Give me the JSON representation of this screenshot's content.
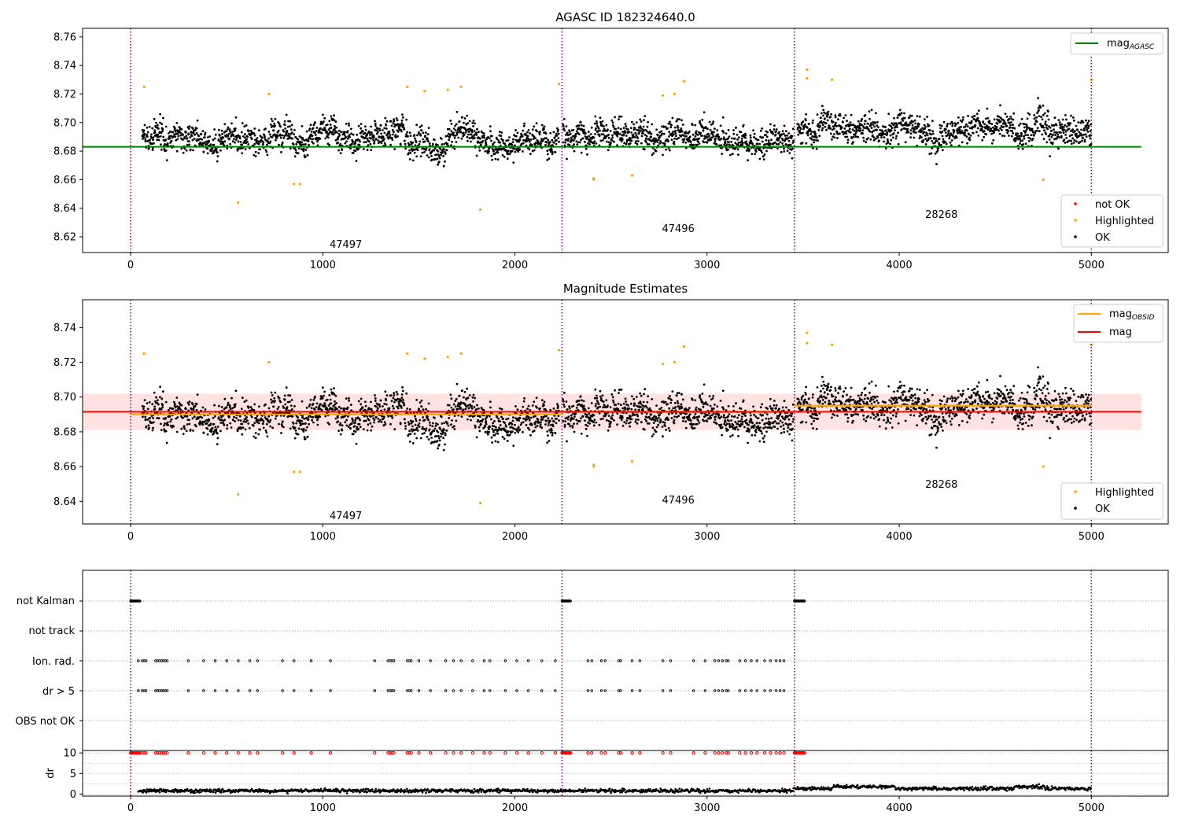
{
  "chart_data": [
    {
      "type": "scatter",
      "title": "AGASC ID 182324640.0",
      "xlim": [
        -250,
        5400
      ],
      "ylim": [
        8.609,
        8.766
      ],
      "xticks": [
        "0",
        "1000",
        "2000",
        "3000",
        "4000",
        "5000"
      ],
      "yticks": [
        "8.62",
        "8.64",
        "8.66",
        "8.68",
        "8.70",
        "8.72",
        "8.74",
        "8.76"
      ],
      "obs_boundaries": [
        0,
        2245,
        3455,
        5000
      ],
      "obs_labels": [
        {
          "text": "47497",
          "x": 1120,
          "y": 8.615
        },
        {
          "text": "47496",
          "x": 2850,
          "y": 8.626
        },
        {
          "text": "28268",
          "x": 4220,
          "y": 8.636
        }
      ],
      "reference_lines": [
        {
          "name": "mag_AGASC",
          "y": 8.683,
          "color": "#008000"
        }
      ],
      "legend_top": [
        {
          "label": "mag",
          "sub": "AGASC",
          "color": "#008000"
        }
      ],
      "legend_bottom": [
        {
          "label": "not OK",
          "color": "#ff0000"
        },
        {
          "label": "Highlighted",
          "color": "#ffa500"
        },
        {
          "label": "OK",
          "color": "#000000"
        }
      ],
      "segments": [
        {
          "start": 60,
          "end": 2230,
          "mean": 8.69,
          "sigma": 0.0095
        },
        {
          "start": 2250,
          "end": 3450,
          "mean": 8.69,
          "sigma": 0.0095
        },
        {
          "start": 3470,
          "end": 5000,
          "mean": 8.695,
          "sigma": 0.01
        }
      ],
      "highlighted_points": [
        [
          70,
          8.725
        ],
        [
          560,
          8.644
        ],
        [
          720,
          8.72
        ],
        [
          850,
          8.657
        ],
        [
          880,
          8.657
        ],
        [
          1440,
          8.725
        ],
        [
          1530,
          8.722
        ],
        [
          1650,
          8.723
        ],
        [
          1720,
          8.725
        ],
        [
          1820,
          8.639
        ],
        [
          2230,
          8.727
        ],
        [
          2410,
          8.661
        ],
        [
          2410,
          8.66
        ],
        [
          2610,
          8.663
        ],
        [
          2770,
          8.719
        ],
        [
          2830,
          8.72
        ],
        [
          2880,
          8.729
        ],
        [
          3520,
          8.737
        ],
        [
          3520,
          8.731
        ],
        [
          3650,
          8.73
        ],
        [
          4750,
          8.66
        ],
        [
          5000,
          8.73
        ]
      ]
    },
    {
      "type": "scatter",
      "title": "Magnitude Estimates",
      "xlim": [
        -250,
        5400
      ],
      "ylim": [
        8.627,
        8.756
      ],
      "xticks": [
        "0",
        "1000",
        "2000",
        "3000",
        "4000",
        "5000"
      ],
      "yticks": [
        "8.64",
        "8.66",
        "8.68",
        "8.70",
        "8.72",
        "8.74"
      ],
      "obs_boundaries": [
        0,
        2245,
        3455,
        5000
      ],
      "obs_labels": [
        {
          "text": "47497",
          "x": 1120,
          "y": 8.632
        },
        {
          "text": "47496",
          "x": 2850,
          "y": 8.641
        },
        {
          "text": "28268",
          "x": 4220,
          "y": 8.65
        }
      ],
      "reference_lines": [
        {
          "name": "mag",
          "y": 8.6915,
          "color": "#ff0000"
        }
      ],
      "mag_band": [
        8.681,
        8.702
      ],
      "mag_obsid_steps": [
        {
          "start": 0,
          "end": 2245,
          "y": 8.69
        },
        {
          "start": 2245,
          "end": 3455,
          "y": 8.6915
        },
        {
          "start": 3455,
          "end": 5000,
          "y": 8.695
        }
      ],
      "legend_top": [
        {
          "label": "mag",
          "sub": "OBSID",
          "color": "#ffa500"
        },
        {
          "label": "mag",
          "sub": "",
          "color": "#ff0000"
        }
      ],
      "legend_bottom": [
        {
          "label": "Highlighted",
          "color": "#ffa500"
        },
        {
          "label": "OK",
          "color": "#000000"
        }
      ]
    },
    {
      "type": "scatter",
      "categories": [
        "not Kalman",
        "not track",
        "Ion. rad.",
        "dr > 5",
        "OBS not OK"
      ],
      "flag_ticks": [
        40,
        60,
        70,
        80,
        130,
        140,
        150,
        160,
        170,
        180,
        190,
        300,
        380,
        440,
        500,
        560,
        620,
        660,
        790,
        850,
        940,
        1040,
        1270,
        1340,
        1350,
        1360,
        1370,
        1440,
        1450,
        1460,
        1500,
        1560,
        1640,
        1680,
        1720,
        1780,
        1840,
        1870,
        1950,
        2010,
        2070,
        2140,
        2210,
        2380,
        2400,
        2450,
        2470,
        2540,
        2550,
        2610,
        2650,
        2770,
        2810,
        2930,
        2990,
        3040,
        3060,
        3080,
        3100,
        3110,
        3170,
        3200,
        3230,
        3260,
        3300,
        3330,
        3360,
        3380,
        3400
      ],
      "not_kalman_spans": [
        [
          0,
          50
        ],
        [
          2245,
          2290
        ],
        [
          3455,
          3510
        ]
      ],
      "dr_ylim": [
        0,
        10
      ],
      "dr_yticks": [
        "0",
        "5",
        "10"
      ],
      "ylabel": "dr",
      "xticks": [
        "0",
        "1000",
        "2000",
        "3000",
        "4000",
        "5000"
      ]
    }
  ],
  "colors": {
    "ok": "#000000",
    "highlighted": "#ffa500",
    "not_ok": "#ff0000",
    "agasc_line": "#008000",
    "mag_line": "#ff0000",
    "obsid_line": "#ffa500",
    "boundary": "#800080",
    "band": "#ffc0c0"
  }
}
